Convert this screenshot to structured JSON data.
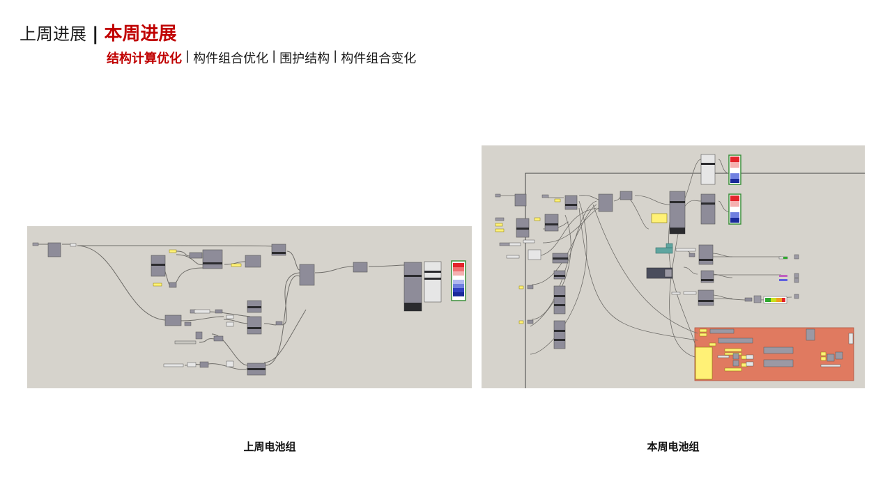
{
  "header": {
    "prev_title": "上周进展",
    "separator": "|",
    "current_title": "本周进展"
  },
  "subnav": {
    "items": [
      {
        "label": "结构计算优化",
        "active": true
      },
      {
        "label": "构件组合优化",
        "active": false
      },
      {
        "label": "围护结构",
        "active": false
      },
      {
        "label": "构件组合变化",
        "active": false
      }
    ],
    "divider": "|"
  },
  "figures": [
    {
      "caption": "上周电池组",
      "image": "grasshopper-definition-last-week"
    },
    {
      "caption": "本周电池组",
      "image": "grasshopper-definition-this-week"
    }
  ],
  "colors": {
    "accent": "#c00000",
    "canvas": "#d6d3cc",
    "component": "#8e8c99",
    "panel_yellow": "#fff176",
    "group_orange": "#e07a60"
  }
}
